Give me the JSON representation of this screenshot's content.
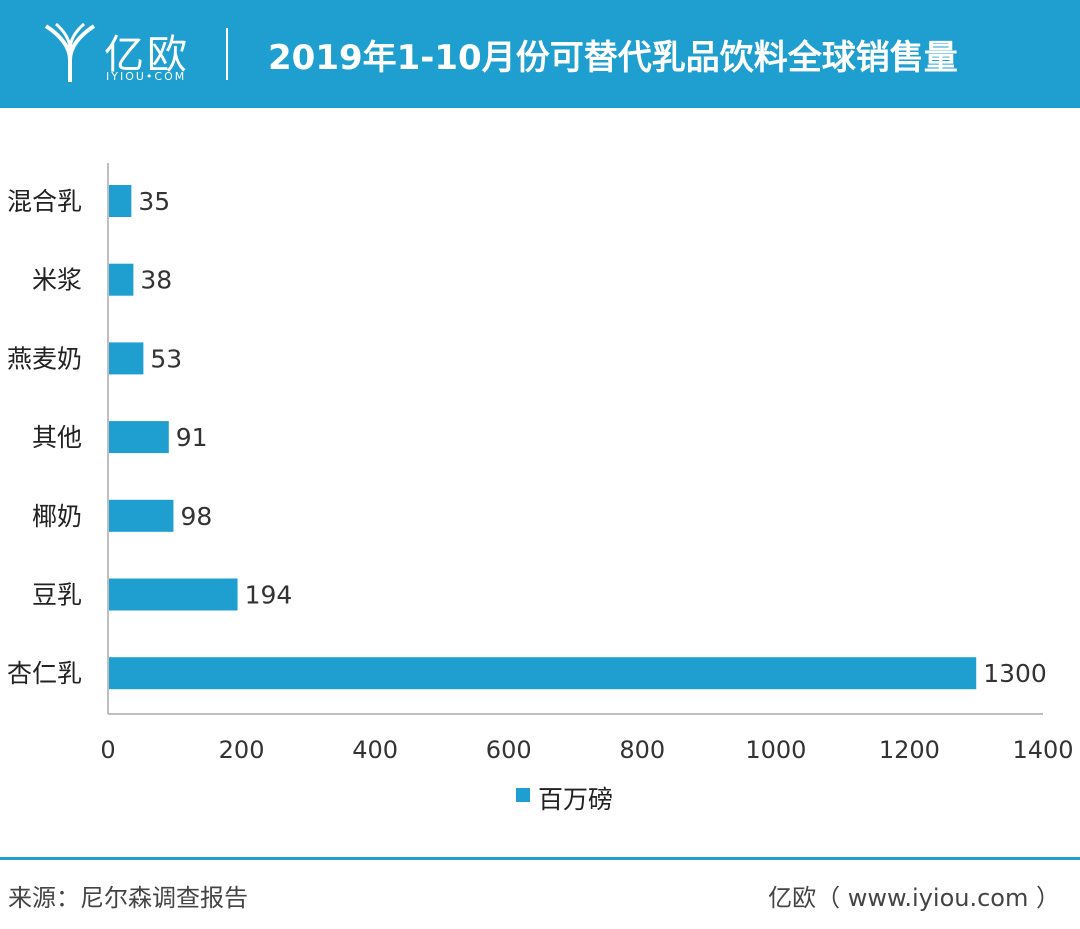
{
  "header": {
    "logo_text": "亿欧",
    "logo_sub": "IYIOU•COM",
    "title": "2019年1-10月份可替代乳品饮料全球销售量"
  },
  "colors": {
    "brand": "#1e9fd0",
    "bar": "#1e9fd0"
  },
  "chart_data": {
    "type": "bar",
    "orientation": "horizontal",
    "categories": [
      "混合乳",
      "米浆",
      "燕麦奶",
      "其他",
      "椰奶",
      "豆乳",
      "杏仁乳"
    ],
    "series": [
      {
        "name": "百万磅",
        "values": [
          35,
          38,
          53,
          91,
          98,
          194,
          1300
        ]
      }
    ],
    "xlim": [
      0,
      1400
    ],
    "xticks": [
      0,
      200,
      400,
      600,
      800,
      1000,
      1200,
      1400
    ],
    "grid": false,
    "legend": "bottom-center"
  },
  "footer": {
    "source": "来源：尼尔森调查报告",
    "brand": "亿欧（ www.iyiou.com ）"
  }
}
